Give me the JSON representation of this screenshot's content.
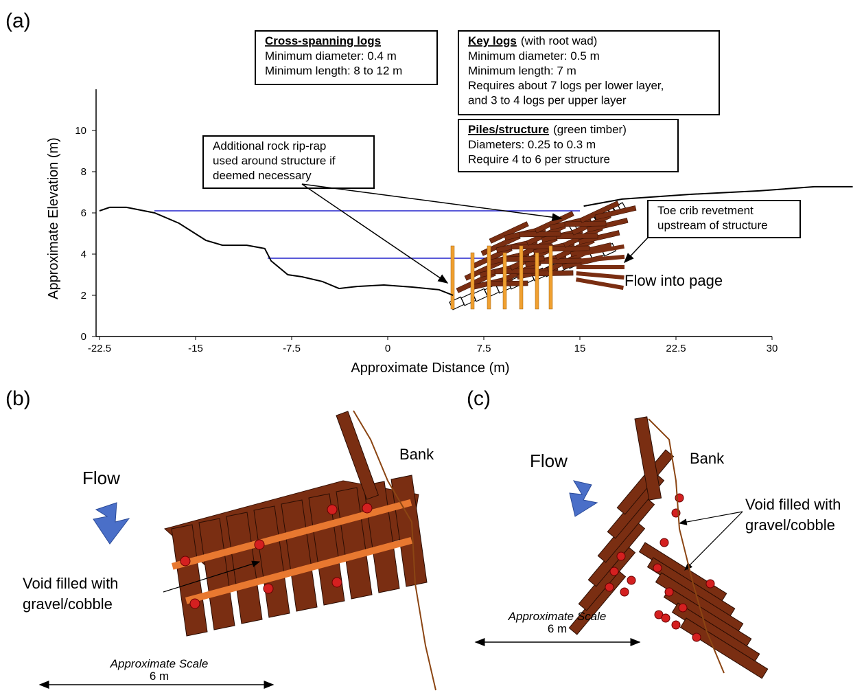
{
  "panel_labels": [
    "(a)",
    "(b)",
    "(c)"
  ],
  "chart_data": {
    "type": "line",
    "xlabel": "Approximate Distance (m)",
    "ylabel": "Approximate Elevation (m)",
    "xlim": [
      -22.5,
      30
    ],
    "xticks": [
      -22.5,
      -15,
      -7.5,
      0,
      7.5,
      15,
      22.5,
      30
    ],
    "ylim": [
      0,
      12
    ],
    "yticks": [
      0,
      2,
      4,
      6,
      8,
      10
    ],
    "color": "#000000",
    "x": [
      -22.5,
      -21.7,
      -20.4,
      -18.2,
      -16.3,
      -14.2,
      -12.9,
      -11.0,
      -9.6,
      -9.1,
      -7.8,
      -6.7,
      -5.1,
      -3.8,
      -2.4,
      -0.3,
      1.9,
      4.0,
      5.1,
      10.0,
      15.3,
      18.3,
      23.6,
      29.0,
      33.3,
      36.3
    ],
    "values": [
      6.1,
      6.27,
      6.27,
      6.0,
      5.5,
      4.67,
      4.43,
      4.43,
      4.27,
      3.67,
      3.0,
      2.9,
      2.67,
      2.33,
      2.43,
      2.5,
      2.4,
      2.27,
      2.0,
      null,
      6.33,
      6.67,
      6.9,
      7.07,
      7.27,
      7.27
    ],
    "annotations": [
      {
        "heading": "Cross-spanning logs",
        "lines": [
          "Minimum diameter: 0.4 m",
          "Minimum length: 8 to 12 m"
        ]
      },
      {
        "heading": "Key logs",
        "note": "(with root wad)",
        "lines": [
          "Minimum diameter: 0.5 m",
          "Minimum length: 7 m",
          "Requires about 7 logs per lower layer,",
          "and 3 to 4 logs per upper layer"
        ]
      },
      {
        "heading": "Piles/structure",
        "note": "(green timber)",
        "lines": [
          "Diameters: 0.25 to 0.3 m",
          "Require 4 to 6 per structure"
        ]
      },
      {
        "lines": [
          "Additional rock rip-rap",
          "used around structure  if",
          "deemed necessary"
        ]
      },
      {
        "lines": [
          "Toe crib revetment",
          "upstream of structure"
        ]
      }
    ],
    "flow_label": "Flow into page"
  },
  "panel_b": {
    "flow": "Flow",
    "bank": "Bank",
    "void": [
      "Void filled with",
      "gravel/cobble"
    ],
    "scale_title": "Approximate Scale",
    "scale": "6 m"
  },
  "panel_c": {
    "flow": "Flow",
    "bank": "Bank",
    "void": [
      "Void filled with",
      "gravel/cobble"
    ],
    "scale_title": "Approximate Scale",
    "scale": "6 m"
  }
}
